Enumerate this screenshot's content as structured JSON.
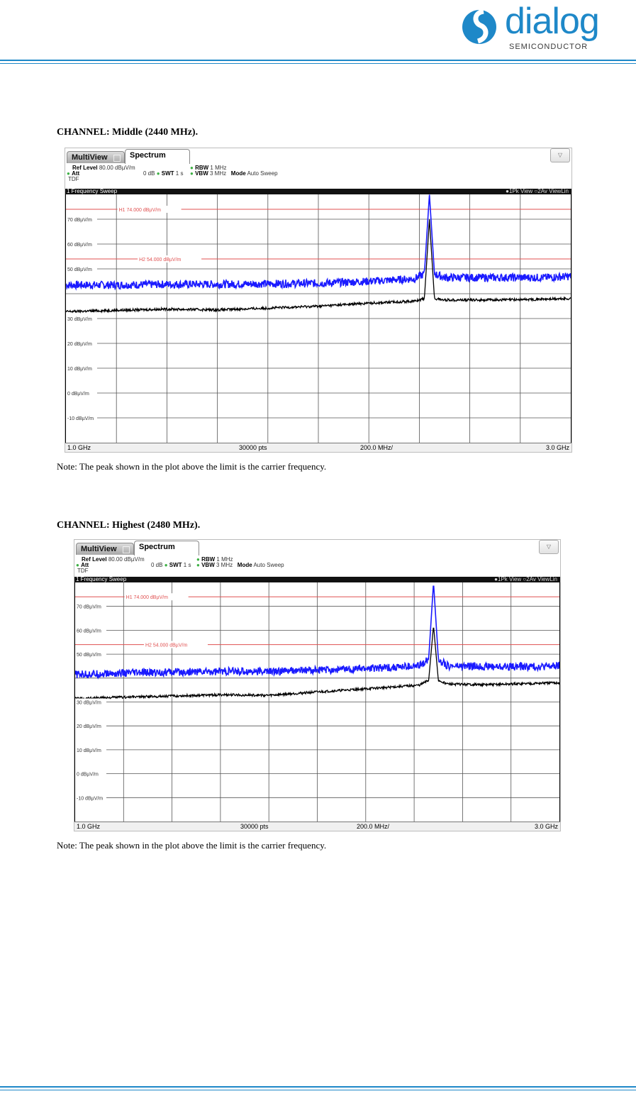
{
  "header": {
    "logo_word": "dialog",
    "logo_sub": "SEMICONDUCTOR"
  },
  "colors": {
    "brand": "#1e88c8",
    "trace_peak": "#1a1aff",
    "trace_avg": "#000000",
    "limit_line": "#e05050"
  },
  "plots": [
    {
      "title": "CHANNEL: Middle (2440 MHz).",
      "note": "Note: The peak shown in the plot above the limit is the carrier frequency.",
      "tab_multiview": "MultiView",
      "tab_spectrum": "Spectrum",
      "ref_level_label": "Ref Level",
      "ref_level_value": "80.00 dBµV/m",
      "att_label": "Att",
      "att_value": "0 dB",
      "swt_label": "SWT",
      "swt_value": "1 s",
      "rbw_label": "RBW",
      "rbw_value": "1 MHz",
      "vbw_label": "VBW",
      "vbw_value": "3 MHz",
      "mode_label": "Mode",
      "mode_value": "Auto Sweep",
      "tdf": "TDF",
      "sweep_title": "1 Frequency Sweep",
      "legend": "●1Pk View ○2Av ViewLin",
      "footer_start": "1.0 GHz",
      "footer_pts": "30000 pts",
      "footer_span": "200.0 MHz/",
      "footer_stop": "3.0 GHz"
    },
    {
      "title": "CHANNEL: Highest (2480 MHz).",
      "note": "Note: The peak shown in the plot above the limit is the carrier frequency.",
      "tab_multiview": "MultiView",
      "tab_spectrum": "Spectrum",
      "ref_level_label": "Ref Level",
      "ref_level_value": "80.00 dBµV/m",
      "att_label": "Att",
      "att_value": "0 dB",
      "swt_label": "SWT",
      "swt_value": "1 s",
      "rbw_label": "RBW",
      "rbw_value": "1 MHz",
      "vbw_label": "VBW",
      "vbw_value": "3 MHz",
      "mode_label": "Mode",
      "mode_value": "Auto Sweep",
      "tdf": "TDF",
      "sweep_title": "1 Frequency Sweep",
      "legend": "●1Pk View ○2Av ViewLin",
      "footer_start": "1.0 GHz",
      "footer_pts": "30000 pts",
      "footer_span": "200.0 MHz/",
      "footer_stop": "3.0 GHz"
    }
  ],
  "chart_data": [
    {
      "type": "line",
      "title": "1 Frequency Sweep",
      "xlabel": "",
      "ylabel": "",
      "xlim": [
        1.0,
        3.0
      ],
      "ylim": [
        -20,
        80
      ],
      "y_ticks": [
        70,
        60,
        50,
        30,
        20,
        10,
        0,
        -10
      ],
      "y_tick_labels": [
        "70 dBµV/m",
        "60 dBµV/m",
        "50 dBµV/m",
        "30 dBµV/m",
        "20 dBµV/m",
        "10 dBµV/m",
        "0 dBµV/m",
        "-10 dBµV/m"
      ],
      "limit_lines": [
        {
          "name": "H1",
          "label": "H1  74.000 dBµV/m",
          "value": 74.0
        },
        {
          "name": "H2",
          "label": "H2  54.000 dBµV/m",
          "value": 54.0
        }
      ],
      "series": [
        {
          "name": "1Pk View",
          "color": "#1a1aff",
          "x": [
            1.0,
            1.2,
            1.4,
            1.6,
            1.8,
            2.0,
            2.2,
            2.38,
            2.42,
            2.44,
            2.46,
            2.5,
            2.7,
            2.9,
            3.0
          ],
          "y": [
            43.5,
            43.5,
            43.8,
            43.8,
            44.0,
            44.2,
            45.0,
            46.0,
            48.0,
            80.0,
            48.0,
            46.5,
            46.5,
            46.5,
            47.0
          ]
        },
        {
          "name": "2Av ViewLin",
          "color": "#000000",
          "x": [
            1.0,
            1.2,
            1.4,
            1.6,
            1.8,
            2.0,
            2.2,
            2.38,
            2.42,
            2.44,
            2.46,
            2.5,
            2.7,
            2.9,
            3.0
          ],
          "y": [
            32.8,
            33.3,
            33.8,
            33.5,
            34.2,
            35.0,
            36.2,
            37.0,
            38.0,
            70.0,
            38.0,
            37.5,
            37.5,
            37.8,
            38.0
          ]
        }
      ]
    },
    {
      "type": "line",
      "title": "1 Frequency Sweep",
      "xlabel": "",
      "ylabel": "",
      "xlim": [
        1.0,
        3.0
      ],
      "ylim": [
        -20,
        80
      ],
      "y_ticks": [
        70,
        60,
        50,
        30,
        20,
        10,
        0,
        -10
      ],
      "y_tick_labels": [
        "70 dBµV/m",
        "60 dBµV/m",
        "50 dBµV/m",
        "30 dBµV/m",
        "20 dBµV/m",
        "10 dBµV/m",
        "0 dBµV/m",
        "-10 dBµV/m"
      ],
      "limit_lines": [
        {
          "name": "H1",
          "label": "H1  74.000 dBµV/m",
          "value": 74.0
        },
        {
          "name": "H2",
          "label": "H2  54.000 dBµV/m",
          "value": 54.0
        }
      ],
      "series": [
        {
          "name": "1Pk View",
          "color": "#1a1aff",
          "x": [
            1.0,
            1.2,
            1.4,
            1.6,
            1.8,
            2.0,
            2.2,
            2.42,
            2.46,
            2.48,
            2.5,
            2.54,
            2.7,
            2.9,
            3.0
          ],
          "y": [
            41.5,
            42.0,
            42.5,
            42.8,
            42.8,
            43.3,
            44.0,
            45.0,
            48.0,
            80.0,
            48.0,
            45.0,
            44.8,
            44.8,
            45.0
          ]
        },
        {
          "name": "2Av ViewLin",
          "color": "#000000",
          "x": [
            1.0,
            1.2,
            1.4,
            1.6,
            1.8,
            2.0,
            2.2,
            2.42,
            2.46,
            2.48,
            2.5,
            2.54,
            2.7,
            2.9,
            3.0
          ],
          "y": [
            31.5,
            32.0,
            32.5,
            33.0,
            32.8,
            34.2,
            35.5,
            37.0,
            39.0,
            62.0,
            39.0,
            37.5,
            37.2,
            37.8,
            38.0
          ]
        }
      ]
    }
  ]
}
